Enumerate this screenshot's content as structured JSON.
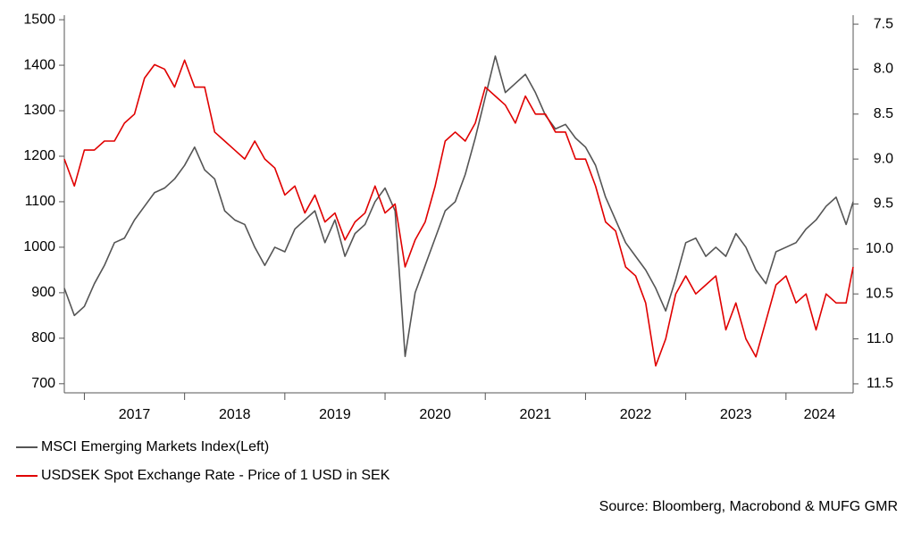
{
  "chart_data": {
    "type": "line",
    "source": "Source: Bloomberg, Macrobond & MUFG GMR",
    "x": [
      2016.8,
      2016.9,
      2017.0,
      2017.1,
      2017.2,
      2017.3,
      2017.4,
      2017.5,
      2017.6,
      2017.7,
      2017.8,
      2017.9,
      2018.0,
      2018.1,
      2018.2,
      2018.3,
      2018.4,
      2018.5,
      2018.6,
      2018.7,
      2018.8,
      2018.9,
      2019.0,
      2019.1,
      2019.2,
      2019.3,
      2019.4,
      2019.5,
      2019.6,
      2019.7,
      2019.8,
      2019.9,
      2020.0,
      2020.1,
      2020.2,
      2020.3,
      2020.4,
      2020.5,
      2020.6,
      2020.7,
      2020.8,
      2020.9,
      2021.0,
      2021.1,
      2021.2,
      2021.3,
      2021.4,
      2021.5,
      2021.6,
      2021.7,
      2021.8,
      2021.9,
      2022.0,
      2022.1,
      2022.2,
      2022.3,
      2022.4,
      2022.5,
      2022.6,
      2022.7,
      2022.8,
      2022.9,
      2023.0,
      2023.1,
      2023.2,
      2023.3,
      2023.4,
      2023.5,
      2023.6,
      2023.7,
      2023.8,
      2023.9,
      2024.0,
      2024.1,
      2024.2,
      2024.3,
      2024.4,
      2024.5,
      2024.6,
      2024.67
    ],
    "series": [
      {
        "name": "MSCI Emerging Markets Index(Left)",
        "color": "#555555",
        "axis": "y",
        "values": [
          910,
          850,
          870,
          920,
          960,
          1010,
          1020,
          1060,
          1090,
          1120,
          1130,
          1150,
          1180,
          1220,
          1170,
          1150,
          1080,
          1060,
          1050,
          1000,
          960,
          1000,
          990,
          1040,
          1060,
          1080,
          1010,
          1060,
          980,
          1030,
          1050,
          1100,
          1130,
          1080,
          760,
          900,
          960,
          1020,
          1080,
          1100,
          1160,
          1240,
          1330,
          1420,
          1340,
          1360,
          1380,
          1340,
          1290,
          1260,
          1270,
          1240,
          1220,
          1180,
          1110,
          1060,
          1010,
          980,
          950,
          910,
          860,
          930,
          1010,
          1020,
          980,
          1000,
          980,
          1030,
          1000,
          950,
          920,
          990,
          1000,
          1010,
          1040,
          1060,
          1090,
          1110,
          1050,
          1100
        ]
      },
      {
        "name": "USDSEK Spot Exchange Rate - Price of 1 USD in SEK",
        "color": "#e00000",
        "axis": "y2",
        "values": [
          9.0,
          9.3,
          8.9,
          8.9,
          8.8,
          8.8,
          8.6,
          8.5,
          8.1,
          7.95,
          8.0,
          8.2,
          7.9,
          8.2,
          8.2,
          8.7,
          8.8,
          8.9,
          9.0,
          8.8,
          9.0,
          9.1,
          9.4,
          9.3,
          9.6,
          9.4,
          9.7,
          9.6,
          9.9,
          9.7,
          9.6,
          9.3,
          9.6,
          9.5,
          10.2,
          9.9,
          9.7,
          9.3,
          8.8,
          8.7,
          8.8,
          8.6,
          8.2,
          8.3,
          8.4,
          8.6,
          8.3,
          8.5,
          8.5,
          8.7,
          8.7,
          9.0,
          9.0,
          9.3,
          9.7,
          9.8,
          10.2,
          10.3,
          10.6,
          11.3,
          11.0,
          10.5,
          10.3,
          10.5,
          10.4,
          10.3,
          10.9,
          10.6,
          11.0,
          11.2,
          10.8,
          10.4,
          10.3,
          10.6,
          10.5,
          10.9,
          10.5,
          10.6,
          10.6,
          10.2
        ]
      }
    ],
    "xlim": [
      2016.8,
      2024.67
    ],
    "xticks": [
      {
        "value": 2017,
        "label": "2017"
      },
      {
        "value": 2018,
        "label": "2018"
      },
      {
        "value": 2019,
        "label": "2019"
      },
      {
        "value": 2020,
        "label": "2020"
      },
      {
        "value": 2021,
        "label": "2021"
      },
      {
        "value": 2022,
        "label": "2022"
      },
      {
        "value": 2023,
        "label": "2023"
      },
      {
        "value": 2024,
        "label": "2024"
      }
    ],
    "ylim": [
      680,
      1510
    ],
    "yticks": [
      700,
      800,
      900,
      1000,
      1100,
      1200,
      1300,
      1400,
      1500
    ],
    "y2lim": [
      11.6,
      7.4
    ],
    "y2ticks": [
      7.5,
      {
        "value": 8,
        "label": "8.0"
      },
      8.5,
      {
        "value": 9,
        "label": "9.0"
      },
      9.5,
      {
        "value": 10,
        "label": "10.0"
      },
      10.5,
      {
        "value": 11,
        "label": "11.0"
      },
      11.5
    ],
    "legend": "bottom-left",
    "grid": false
  }
}
